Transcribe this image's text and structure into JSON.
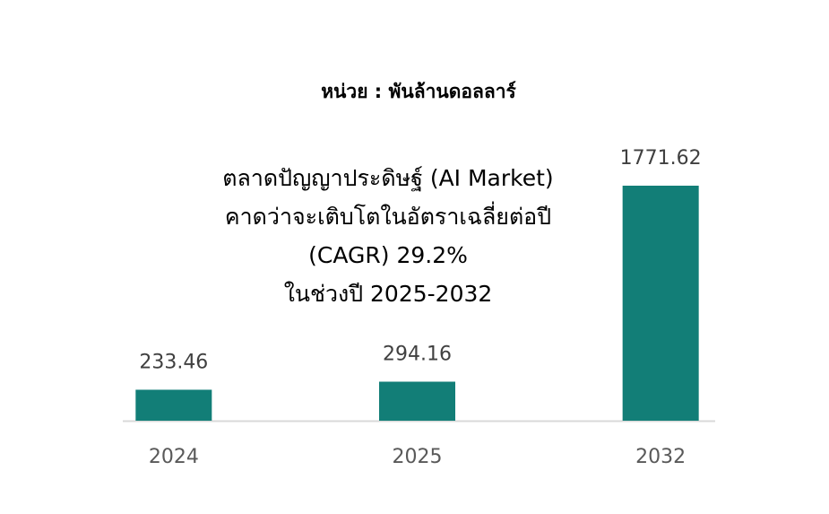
{
  "chart_data": {
    "type": "bar",
    "subtitle": "หน่วย : พันล้านดอลลาร์",
    "annotation": [
      "ตลาดปัญญาประดิษฐ์ (AI Market)",
      "คาดว่าจะเติบโตในอัตราเฉลี่ยต่อปี",
      "(CAGR) 29.2%",
      "ในช่วงปี 2025-2032"
    ],
    "categories": [
      "2024",
      "2025",
      "2032"
    ],
    "values": [
      233.46,
      294.16,
      1771.62
    ],
    "color": "#127e77"
  }
}
